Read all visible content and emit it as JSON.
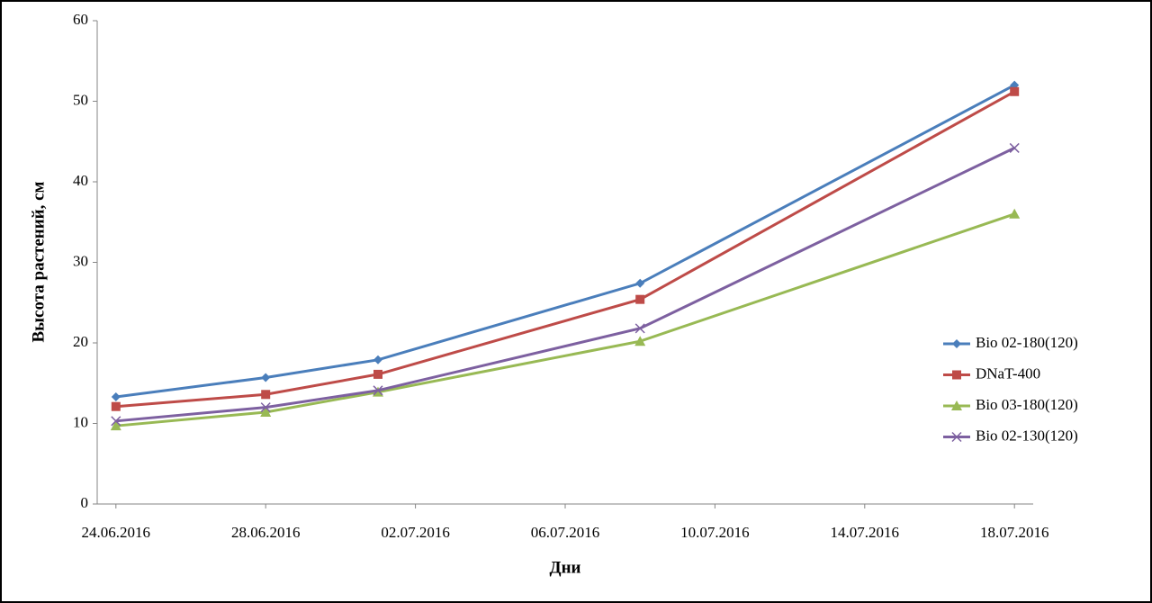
{
  "chart_data": {
    "type": "line",
    "x_label": "Дни",
    "y_label": "Высота растений, см",
    "x": [
      "2016-06-24",
      "2016-06-28",
      "2016-07-01",
      "2016-07-08",
      "2016-07-18"
    ],
    "series": [
      {
        "name": "Bio 02-180(120)",
        "color": "#4a7ebb",
        "marker": "diamond",
        "values": [
          13.3,
          15.7,
          17.9,
          27.4,
          52.0
        ]
      },
      {
        "name": "DNaT-400",
        "color": "#be4b48",
        "marker": "square",
        "values": [
          12.1,
          13.6,
          16.1,
          25.4,
          51.2
        ]
      },
      {
        "name": "Bio 03-180(120)",
        "color": "#98b954",
        "marker": "triangle",
        "values": [
          9.7,
          11.4,
          13.9,
          20.2,
          36.0
        ]
      },
      {
        "name": "Bio 02-130(120)",
        "color": "#7d60a0",
        "marker": "x",
        "values": [
          10.3,
          12.0,
          14.1,
          21.8,
          44.2
        ]
      }
    ],
    "xlim": [
      "2016-06-24",
      "2016-07-18"
    ],
    "xticks": [
      {
        "value": "2016-06-24",
        "label": "24.06.2016"
      },
      {
        "value": "2016-06-28",
        "label": "28.06.2016"
      },
      {
        "value": "2016-07-02",
        "label": "02.07.2016"
      },
      {
        "value": "2016-07-06",
        "label": "06.07.2016"
      },
      {
        "value": "2016-07-10",
        "label": "10.07.2016"
      },
      {
        "value": "2016-07-14",
        "label": "14.07.2016"
      },
      {
        "value": "2016-07-18",
        "label": "18.07.2016"
      }
    ],
    "ylim": [
      0,
      60
    ],
    "yticks": [
      0,
      10,
      20,
      30,
      40,
      50,
      60
    ],
    "grid": false,
    "legend": "right"
  }
}
